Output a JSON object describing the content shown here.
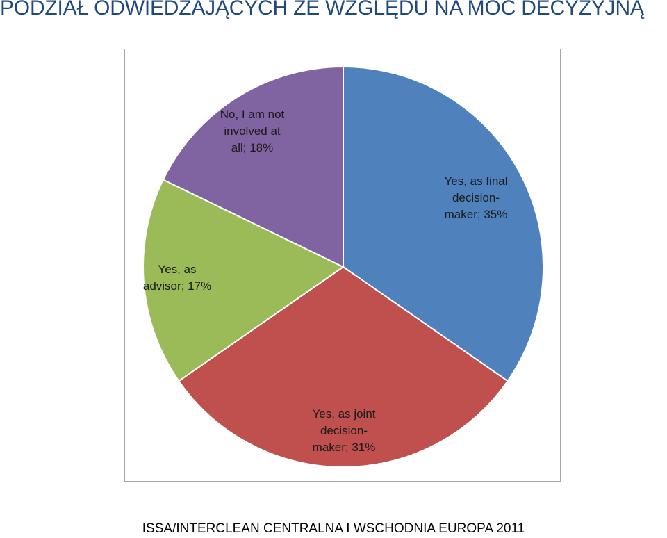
{
  "page": {
    "title": "PODZIAŁ ODWIEDZAJĄCYCH ZE WZGLĘDU NA MOC DECYZYJNĄ",
    "footer": "ISSA/INTERCLEAN CENTRALNA I WSCHODNIA EUROPA 2011"
  },
  "chart_data": {
    "type": "pie",
    "title": "",
    "start_angle_deg": 0,
    "direction": "clockwise",
    "slices": [
      {
        "name": "Yes, as final decision-maker",
        "value": 35,
        "label_lines": [
          "Yes, as final",
          "decision-",
          "maker; 35%"
        ],
        "color": "#4f81bd"
      },
      {
        "name": "Yes, as joint decision-maker",
        "value": 31,
        "label_lines": [
          "Yes, as joint",
          "decision-",
          "maker; 31%"
        ],
        "color": "#c0504d"
      },
      {
        "name": "Yes, as advisor",
        "value": 17,
        "label_lines": [
          "Yes, as",
          "advisor; 17%"
        ],
        "color": "#9bbb59"
      },
      {
        "name": "No, I am not involved at all",
        "value": 18,
        "label_lines": [
          "No, I am not",
          "involved at",
          "all; 18%"
        ],
        "color": "#8064a2"
      }
    ]
  }
}
